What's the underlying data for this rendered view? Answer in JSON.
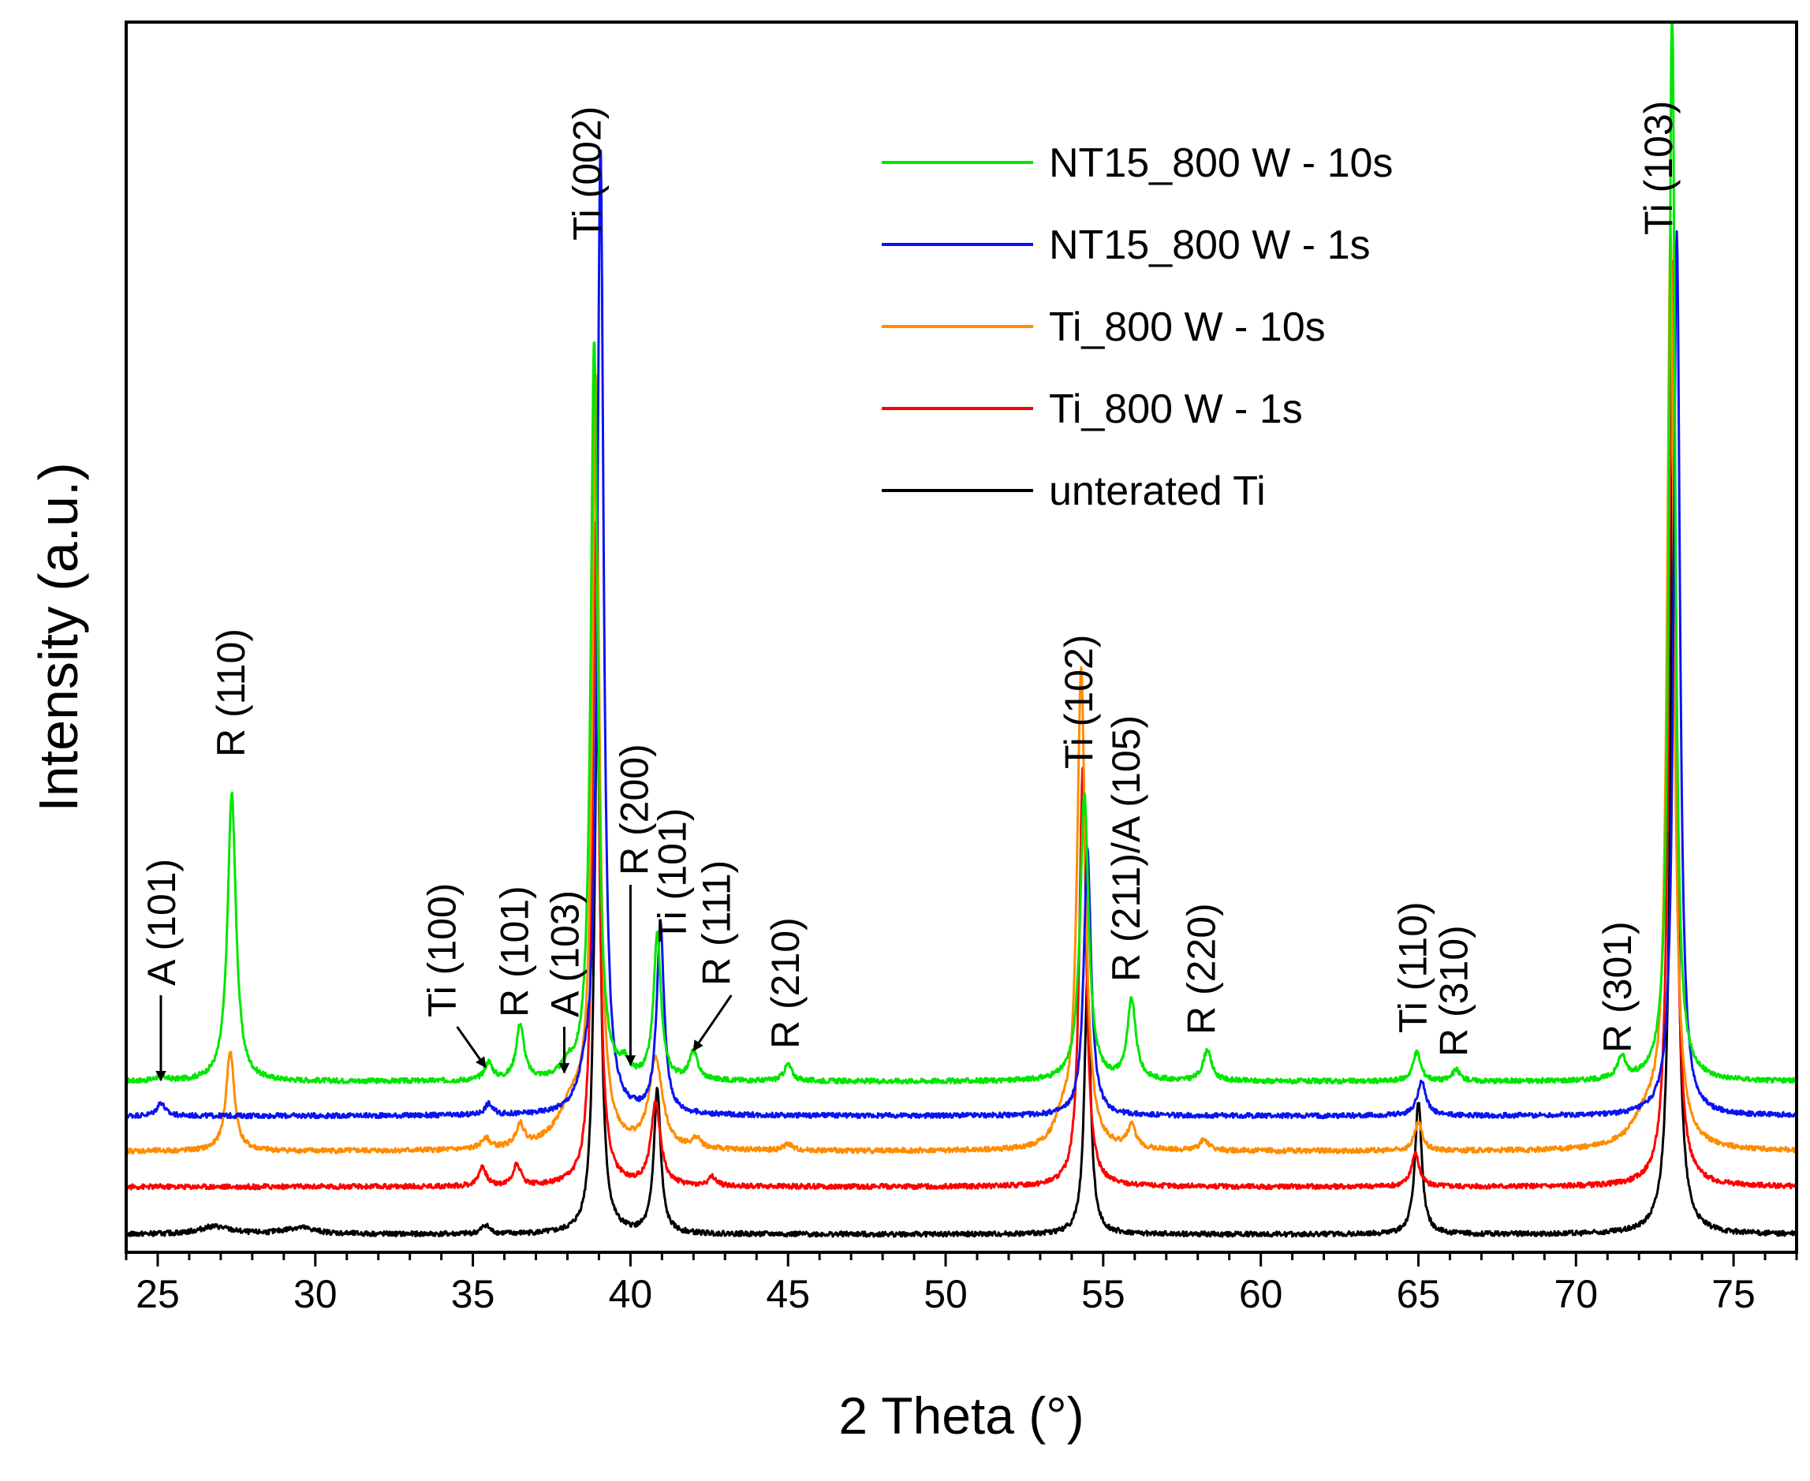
{
  "chart_data": {
    "type": "line",
    "title": "",
    "xlabel": "2 Theta (°)",
    "ylabel": "Intensity (a.u.)",
    "xlim": [
      24,
      77
    ],
    "ylim": [
      0,
      100
    ],
    "grid": false,
    "legend_position": "top-right",
    "xticks": [
      25,
      30,
      35,
      40,
      45,
      50,
      55,
      60,
      65,
      70,
      75
    ],
    "xtick_labels": [
      "25",
      "30",
      "35",
      "40",
      "45",
      "50",
      "55",
      "60",
      "65",
      "70",
      "75"
    ],
    "series": [
      {
        "name": "NT15_800 W - 10s",
        "color": "#00e600",
        "baseline": 14.7,
        "peaks": [
          [
            25.1,
            0.5,
            0.15
          ],
          [
            27.35,
            26,
            0.16
          ],
          [
            35.5,
            1.6,
            0.15
          ],
          [
            36.5,
            5.0,
            0.15
          ],
          [
            38.0,
            1.0,
            0.2
          ],
          [
            38.85,
            67,
            0.13
          ],
          [
            39.8,
            1.2,
            0.15
          ],
          [
            40.85,
            13,
            0.14
          ],
          [
            42.0,
            2.5,
            0.16
          ],
          [
            45.0,
            1.5,
            0.15
          ],
          [
            54.4,
            26,
            0.16
          ],
          [
            55.9,
            7.2,
            0.16
          ],
          [
            58.3,
            2.8,
            0.16
          ],
          [
            64.95,
            2.6,
            0.15
          ],
          [
            66.2,
            1.0,
            0.15
          ],
          [
            71.45,
            2.0,
            0.16
          ],
          [
            73.05,
            100,
            0.11
          ]
        ]
      },
      {
        "name": "NT15_800 W - 1s",
        "color": "#0a14f0",
        "baseline": 11.6,
        "peaks": [
          [
            25.1,
            1.2,
            0.15
          ],
          [
            35.5,
            1.0,
            0.15
          ],
          [
            38.55,
            2.0,
            0.25
          ],
          [
            39.05,
            87,
            0.12
          ],
          [
            40.95,
            17,
            0.14
          ],
          [
            54.5,
            24,
            0.14
          ],
          [
            65.1,
            3.2,
            0.16
          ],
          [
            73.2,
            80,
            0.12
          ]
        ]
      },
      {
        "name": "Ti_800 W - 10s",
        "color": "#ff8c00",
        "baseline": 8.4,
        "peaks": [
          [
            27.3,
            9.0,
            0.16
          ],
          [
            35.4,
            1.0,
            0.15
          ],
          [
            36.5,
            2.0,
            0.15
          ],
          [
            38.2,
            4.0,
            0.6
          ],
          [
            38.9,
            68,
            0.13
          ],
          [
            40.8,
            8.0,
            0.25
          ],
          [
            42.1,
            0.9,
            0.15
          ],
          [
            45.0,
            0.6,
            0.15
          ],
          [
            53.7,
            2.2,
            0.3
          ],
          [
            54.3,
            43,
            0.16
          ],
          [
            55.9,
            2.0,
            0.16
          ],
          [
            58.2,
            1.0,
            0.16
          ],
          [
            65.0,
            2.5,
            0.15
          ],
          [
            72.3,
            3.0,
            0.6
          ],
          [
            73.0,
            82,
            0.13
          ]
        ]
      },
      {
        "name": "Ti_800 W - 1s",
        "color": "#ff0000",
        "baseline": 5.2,
        "peaks": [
          [
            35.3,
            1.8,
            0.14
          ],
          [
            36.4,
            2.0,
            0.14
          ],
          [
            38.9,
            60,
            0.12
          ],
          [
            40.8,
            7.5,
            0.18
          ],
          [
            42.6,
            0.8,
            0.14
          ],
          [
            54.35,
            38,
            0.13
          ],
          [
            64.9,
            3.0,
            0.15
          ],
          [
            73.05,
            84,
            0.12
          ]
        ]
      },
      {
        "name": "unterated Ti",
        "color": "#000000",
        "baseline": 0.9,
        "peaks": [
          [
            26.8,
            0.7,
            0.6
          ],
          [
            29.5,
            0.6,
            0.6
          ],
          [
            35.4,
            0.8,
            0.15
          ],
          [
            38.95,
            48,
            0.12
          ],
          [
            40.85,
            13,
            0.13
          ],
          [
            54.5,
            23,
            0.12
          ],
          [
            65.0,
            12,
            0.13
          ],
          [
            73.1,
            76,
            0.12
          ]
        ]
      }
    ],
    "annotations": [
      {
        "text": "A (101)",
        "x": 25.1,
        "tilted": true,
        "arrow": true,
        "arrow_to": [
          25.1,
          14.8
        ]
      },
      {
        "text": "R (110)",
        "x": 27.3,
        "tilted": true
      },
      {
        "text": "Ti (100)",
        "x": 34.0,
        "tilted": true,
        "arrow": true,
        "arrow_to": [
          35.4,
          16.0
        ]
      },
      {
        "text": "R (101)",
        "x": 36.3,
        "tilted": true
      },
      {
        "text": "A (103)",
        "x": 37.9,
        "tilted": true,
        "arrow": true,
        "arrow_to": [
          37.9,
          15.5
        ]
      },
      {
        "text": "Ti (002)",
        "x": 38.6,
        "tilted": true
      },
      {
        "text": "R (200)",
        "x": 40.1,
        "tilted": true,
        "arrow": true,
        "arrow_to": [
          40.0,
          16.2
        ]
      },
      {
        "text": "Ti (101)",
        "x": 41.3,
        "tilted": true
      },
      {
        "text": "R (111)",
        "x": 42.7,
        "tilted": true,
        "arrow": true,
        "arrow_to": [
          42.0,
          17.5
        ]
      },
      {
        "text": "R (210)",
        "x": 44.9,
        "tilted": true
      },
      {
        "text": "Ti (102)",
        "x": 54.2,
        "tilted": true
      },
      {
        "text": "R (211)/A (105)",
        "x": 55.7,
        "tilted": true
      },
      {
        "text": "R (220)",
        "x": 58.1,
        "tilted": true
      },
      {
        "text": "Ti (110)",
        "x": 64.8,
        "tilted": true
      },
      {
        "text": "R (310)",
        "x": 66.1,
        "tilted": true
      },
      {
        "text": "R (301)",
        "x": 71.3,
        "tilted": true
      },
      {
        "text": "Ti (103)",
        "x": 72.6,
        "tilted": true
      }
    ]
  }
}
